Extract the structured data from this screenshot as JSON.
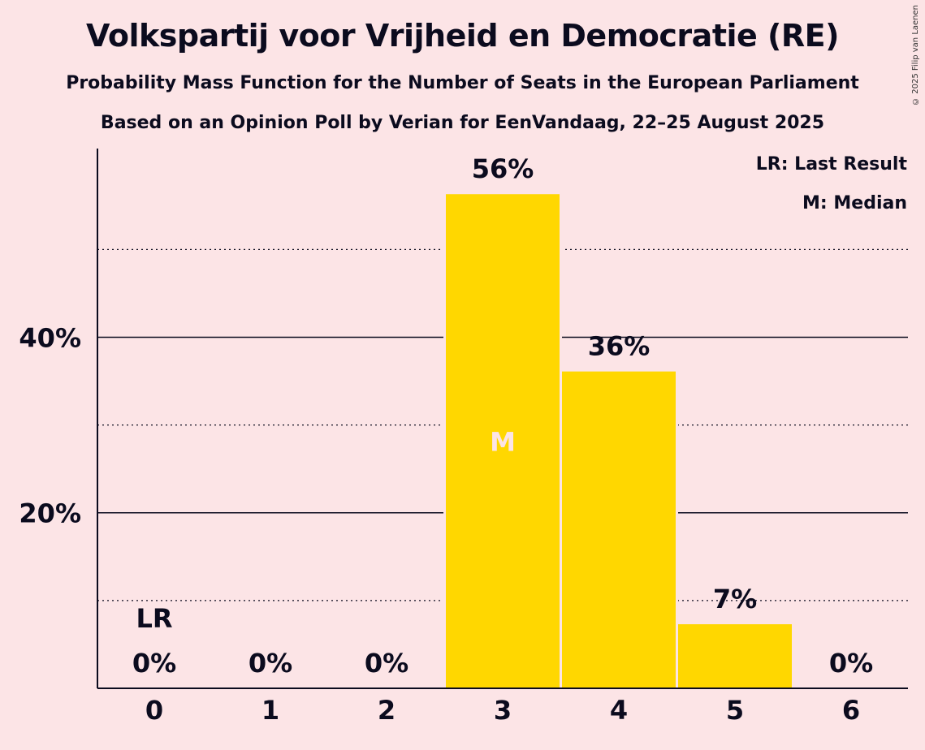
{
  "header": {
    "title": "Volkspartij voor Vrijheid en Democratie (RE)",
    "subtitle1": "Probability Mass Function for the Number of Seats in the European Parliament",
    "subtitle2": "Based on an Opinion Poll by Verian for EenVandaag, 22–25 August 2025",
    "copyright": "© 2025 Filip van Laenen"
  },
  "legend": {
    "lr": "LR: Last Result",
    "m": "M: Median"
  },
  "colors": {
    "background": "#FCE4E6",
    "bar": "#FFD700",
    "text": "#0B0B1E"
  },
  "chart_data": {
    "type": "bar",
    "categories": [
      "0",
      "1",
      "2",
      "3",
      "4",
      "5",
      "6"
    ],
    "values": [
      0,
      0,
      0,
      56.3,
      36.1,
      7.3,
      0
    ],
    "value_labels": [
      "0%",
      "0%",
      "0%",
      "56%",
      "36%",
      "7%",
      "0%"
    ],
    "y_ticks": [
      20,
      40
    ],
    "y_tick_labels": [
      "20%",
      "40%"
    ],
    "minor_gridlines": [
      10,
      30,
      50
    ],
    "ylim": [
      0,
      61.5
    ],
    "last_result_index": 0,
    "last_result_label": "LR",
    "median_index": 3,
    "median_label": "M"
  }
}
